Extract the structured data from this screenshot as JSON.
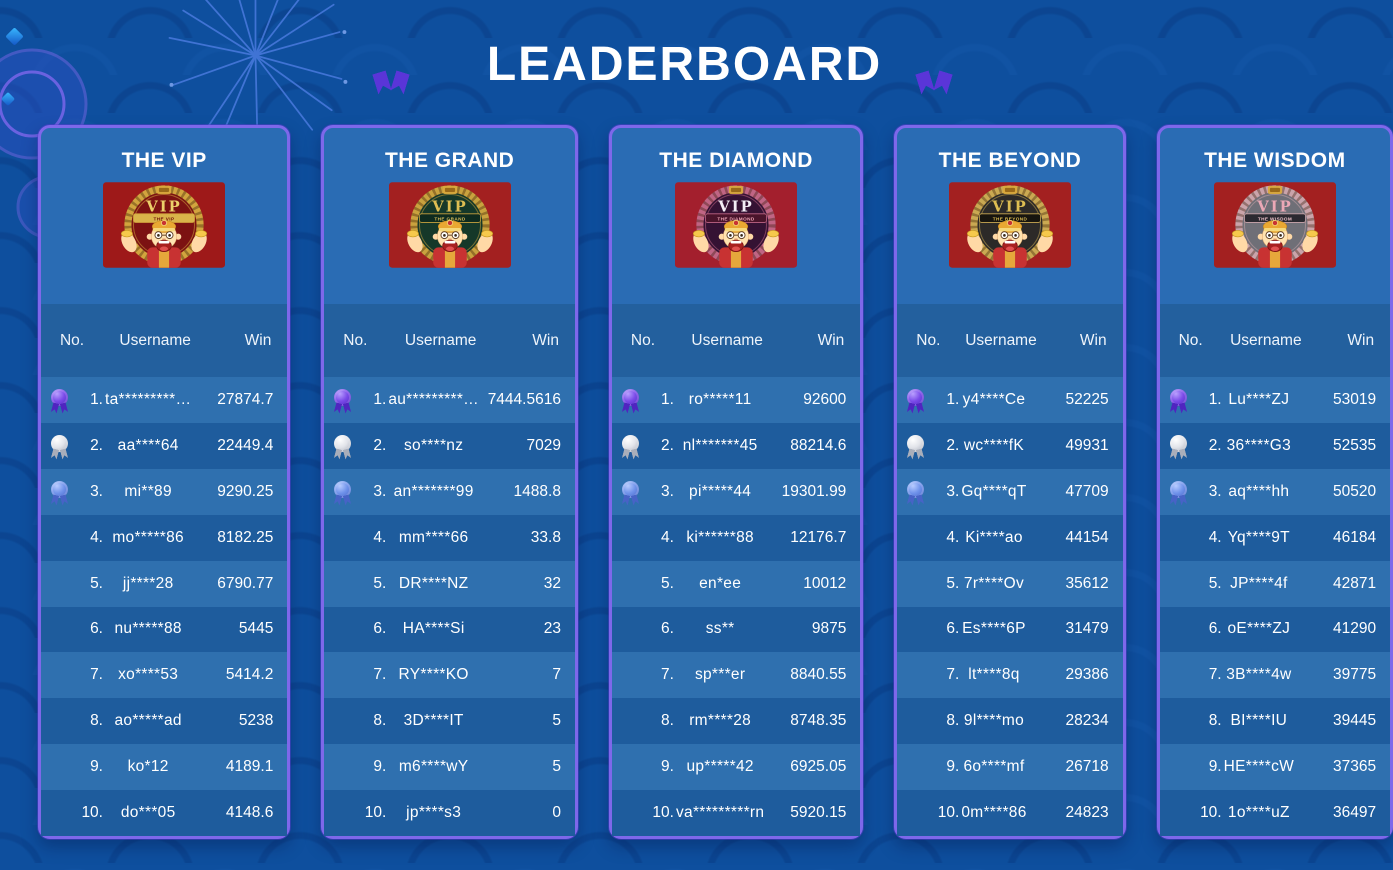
{
  "page": {
    "title": "LEADERBOARD"
  },
  "table_columns": {
    "no": "No.",
    "username": "Username",
    "win": "Win"
  },
  "colors": {
    "background": "#0e4f9e",
    "card_border": "#7e68ea",
    "card_top": "#2a6cb4",
    "table_header_band": "#23609e",
    "row_light": "#2f70af",
    "row_dark": "#1e5c9d",
    "text": "#ffffff",
    "title_medal": "#7b55f0",
    "medal_rank1": "#7a4ae8",
    "medal_rank2": "#e2e4ea",
    "medal_rank3": "#6f92ea"
  },
  "icons": {
    "title_left": "rosette-medal",
    "title_right": "rosette-medal",
    "rank1": "purple-rosette-medal",
    "rank2": "silver-rosette-medal",
    "rank3": "blue-rosette-medal"
  },
  "tiers": [
    {
      "name": "THE VIP",
      "badge": {
        "vip_text": "VIP",
        "label": "THE VIP",
        "bg": "#9e1919",
        "ring": "#d2a43e",
        "center": "#7c1212",
        "vip_color": "#ecd06a",
        "banner_bg": "#d9b44a",
        "banner_text_color": "#6e1008"
      },
      "rows": [
        {
          "rank": "1.",
          "medal": "purple",
          "username": "ta*********…",
          "win": "27874.7"
        },
        {
          "rank": "2.",
          "medal": "silver",
          "username": "aa****64",
          "win": "22449.4"
        },
        {
          "rank": "3.",
          "medal": "blue",
          "username": "mi**89",
          "win": "9290.25"
        },
        {
          "rank": "4.",
          "medal": null,
          "username": "mo*****86",
          "win": "8182.25"
        },
        {
          "rank": "5.",
          "medal": null,
          "username": "jj****28",
          "win": "6790.77"
        },
        {
          "rank": "6.",
          "medal": null,
          "username": "nu*****88",
          "win": "5445"
        },
        {
          "rank": "7.",
          "medal": null,
          "username": "xo****53",
          "win": "5414.2"
        },
        {
          "rank": "8.",
          "medal": null,
          "username": "ao*****ad",
          "win": "5238"
        },
        {
          "rank": "9.",
          "medal": null,
          "username": "ko*12",
          "win": "4189.1"
        },
        {
          "rank": "10.",
          "medal": null,
          "username": "do***05",
          "win": "4148.6"
        }
      ]
    },
    {
      "name": "THE GRAND",
      "badge": {
        "vip_text": "VIP",
        "label": "THE GRAND",
        "bg": "#a32020",
        "ring": "#c9a23e",
        "center": "#153829",
        "vip_color": "#ddbd52",
        "banner_bg": "#0e2b1f",
        "banner_text_color": "#d9bd5a"
      },
      "rows": [
        {
          "rank": "1.",
          "medal": "purple",
          "username": "au*********…",
          "win": "7444.5616"
        },
        {
          "rank": "2.",
          "medal": "silver",
          "username": "so****nz",
          "win": "7029"
        },
        {
          "rank": "3.",
          "medal": "blue",
          "username": "an*******99",
          "win": "1488.8"
        },
        {
          "rank": "4.",
          "medal": null,
          "username": "mm****66",
          "win": "33.8"
        },
        {
          "rank": "5.",
          "medal": null,
          "username": "DR****NZ",
          "win": "32"
        },
        {
          "rank": "6.",
          "medal": null,
          "username": "HA****Si",
          "win": "23"
        },
        {
          "rank": "7.",
          "medal": null,
          "username": "RY****KO",
          "win": "7"
        },
        {
          "rank": "8.",
          "medal": null,
          "username": "3D****IT",
          "win": "5"
        },
        {
          "rank": "9.",
          "medal": null,
          "username": "m6****wY",
          "win": "5"
        },
        {
          "rank": "10.",
          "medal": null,
          "username": "jp****s3",
          "win": "0"
        }
      ]
    },
    {
      "name": "THE DIAMOND",
      "badge": {
        "vip_text": "VIP",
        "label": "THE DIAMOND",
        "bg": "#a31f2d",
        "ring": "#c06584",
        "center": "#351233",
        "vip_color": "#f4eef6",
        "banner_bg": "#4a142b",
        "banner_text_color": "#f0a6b8"
      },
      "rows": [
        {
          "rank": "1.",
          "medal": "purple",
          "username": "ro*****11",
          "win": "92600"
        },
        {
          "rank": "2.",
          "medal": "silver",
          "username": "nl*******45",
          "win": "88214.6"
        },
        {
          "rank": "3.",
          "medal": "blue",
          "username": "pi*****44",
          "win": "19301.99"
        },
        {
          "rank": "4.",
          "medal": null,
          "username": "ki******88",
          "win": "12176.7"
        },
        {
          "rank": "5.",
          "medal": null,
          "username": "en*ee",
          "win": "10012"
        },
        {
          "rank": "6.",
          "medal": null,
          "username": "ss**",
          "win": "9875"
        },
        {
          "rank": "7.",
          "medal": null,
          "username": "sp***er",
          "win": "8840.55"
        },
        {
          "rank": "8.",
          "medal": null,
          "username": "rm****28",
          "win": "8748.35"
        },
        {
          "rank": "9.",
          "medal": null,
          "username": "up*****42",
          "win": "6925.05"
        },
        {
          "rank": "10.",
          "medal": null,
          "username": "va*********rn",
          "win": "5920.15"
        }
      ]
    },
    {
      "name": "THE BEYOND",
      "badge": {
        "vip_text": "VIP",
        "label": "THE BEYOND",
        "bg": "#a32020",
        "ring": "#caa952",
        "center": "#2c2a28",
        "vip_color": "#ddbd52",
        "banner_bg": "#17150f",
        "banner_text_color": "#ddbd52"
      },
      "rows": [
        {
          "rank": "1.",
          "medal": "purple",
          "username": "y4****Ce",
          "win": "52225"
        },
        {
          "rank": "2.",
          "medal": "silver",
          "username": "wc****fK",
          "win": "49931"
        },
        {
          "rank": "3.",
          "medal": "blue",
          "username": "Gq****qT",
          "win": "47709"
        },
        {
          "rank": "4.",
          "medal": null,
          "username": "Ki****ao",
          "win": "44154"
        },
        {
          "rank": "5.",
          "medal": null,
          "username": "7r****Ov",
          "win": "35612"
        },
        {
          "rank": "6.",
          "medal": null,
          "username": "Es****6P",
          "win": "31479"
        },
        {
          "rank": "7.",
          "medal": null,
          "username": "lt****8q",
          "win": "29386"
        },
        {
          "rank": "8.",
          "medal": null,
          "username": "9l****mo",
          "win": "28234"
        },
        {
          "rank": "9.",
          "medal": null,
          "username": "6o****mf",
          "win": "26718"
        },
        {
          "rank": "10.",
          "medal": null,
          "username": "0m****86",
          "win": "24823"
        }
      ]
    },
    {
      "name": "THE WISDOM",
      "badge": {
        "vip_text": "VIP",
        "label": "THE WISDOM",
        "bg": "#a32020",
        "ring": "#caa4aa",
        "center": "#6f6f77",
        "vip_color": "#eba8b6",
        "banner_bg": "#2b2930",
        "banner_text_color": "#eec4cc"
      },
      "rows": [
        {
          "rank": "1.",
          "medal": "purple",
          "username": "Lu****ZJ",
          "win": "53019"
        },
        {
          "rank": "2.",
          "medal": "silver",
          "username": "36****G3",
          "win": "52535"
        },
        {
          "rank": "3.",
          "medal": "blue",
          "username": "aq****hh",
          "win": "50520"
        },
        {
          "rank": "4.",
          "medal": null,
          "username": "Yq****9T",
          "win": "46184"
        },
        {
          "rank": "5.",
          "medal": null,
          "username": "JP****4f",
          "win": "42871"
        },
        {
          "rank": "6.",
          "medal": null,
          "username": "oE****ZJ",
          "win": "41290"
        },
        {
          "rank": "7.",
          "medal": null,
          "username": "3B****4w",
          "win": "39775"
        },
        {
          "rank": "8.",
          "medal": null,
          "username": "BI****IU",
          "win": "39445"
        },
        {
          "rank": "9.",
          "medal": null,
          "username": "HE****cW",
          "win": "37365"
        },
        {
          "rank": "10.",
          "medal": null,
          "username": "1o****uZ",
          "win": "36497"
        }
      ]
    }
  ]
}
